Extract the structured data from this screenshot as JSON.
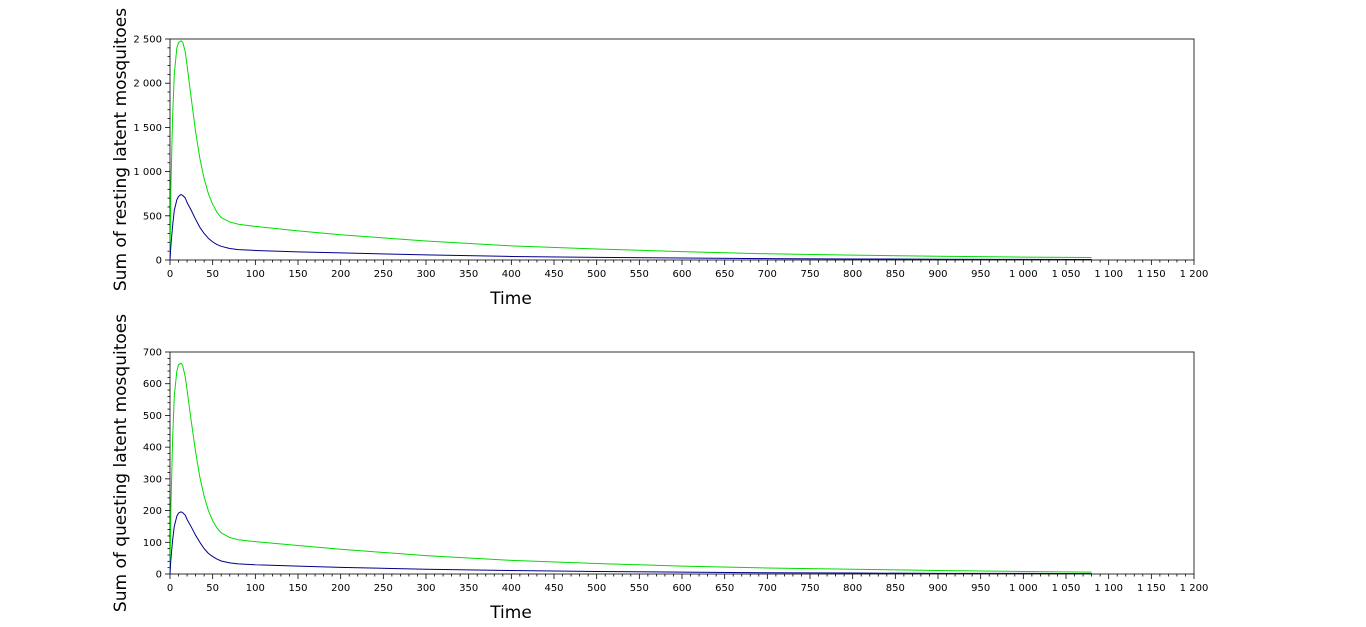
{
  "colors": {
    "series_green": "#00dd00",
    "series_blue": "#00008b",
    "axes": "#000000",
    "background": "#ffffff"
  },
  "chart_data": [
    {
      "type": "line",
      "title": "",
      "xlabel": "Time",
      "ylabel": "Sum of resting latent mosquitoes",
      "xlim": [
        0,
        1200
      ],
      "ylim": [
        0,
        2500
      ],
      "grid": false,
      "x_ticks": [
        0,
        50,
        100,
        150,
        200,
        250,
        300,
        350,
        400,
        450,
        500,
        550,
        600,
        650,
        700,
        750,
        800,
        850,
        900,
        950,
        1000,
        1050,
        1100,
        1150,
        1200
      ],
      "x_tick_labels": [
        "0",
        "50",
        "100",
        "150",
        "200",
        "250",
        "300",
        "350",
        "400",
        "450",
        "500",
        "550",
        "600",
        "650",
        "700",
        "750",
        "800",
        "850",
        "900",
        "950",
        "1 000",
        "1 050",
        "1 100",
        "1 150",
        "1 200"
      ],
      "y_ticks": [
        0,
        500,
        1000,
        1500,
        2000,
        2500
      ],
      "y_tick_labels": [
        "0",
        "500",
        "1 000",
        "1 500",
        "2 000",
        "2 500"
      ],
      "series": [
        {
          "color": "#00dd00",
          "x": [
            0,
            1,
            3,
            5,
            8,
            10,
            13,
            15,
            18,
            20,
            25,
            30,
            35,
            40,
            45,
            50,
            55,
            60,
            70,
            80,
            100,
            150,
            200,
            300,
            400,
            500,
            600,
            700,
            800,
            900,
            1000,
            1080
          ],
          "y": [
            0,
            800,
            1600,
            2100,
            2400,
            2460,
            2480,
            2460,
            2350,
            2200,
            1820,
            1450,
            1150,
            920,
            750,
            630,
            540,
            480,
            430,
            405,
            380,
            330,
            285,
            215,
            160,
            125,
            95,
            70,
            55,
            42,
            33,
            28
          ]
        },
        {
          "color": "#00008b",
          "x": [
            0,
            1,
            3,
            5,
            8,
            10,
            13,
            15,
            18,
            20,
            25,
            30,
            35,
            40,
            45,
            50,
            55,
            60,
            70,
            80,
            100,
            150,
            200,
            300,
            400,
            500,
            600,
            700,
            800,
            900,
            1000,
            1080
          ],
          "y": [
            0,
            160,
            380,
            560,
            680,
            720,
            740,
            730,
            700,
            650,
            560,
            460,
            370,
            300,
            245,
            205,
            175,
            155,
            130,
            118,
            108,
            92,
            80,
            58,
            40,
            30,
            22,
            16,
            12,
            9,
            7,
            6
          ]
        }
      ]
    },
    {
      "type": "line",
      "title": "",
      "xlabel": "Time",
      "ylabel": "Sum of questing latent mosquitoes",
      "xlim": [
        0,
        1200
      ],
      "ylim": [
        0,
        700
      ],
      "grid": false,
      "x_ticks": [
        0,
        50,
        100,
        150,
        200,
        250,
        300,
        350,
        400,
        450,
        500,
        550,
        600,
        650,
        700,
        750,
        800,
        850,
        900,
        950,
        1000,
        1050,
        1100,
        1150,
        1200
      ],
      "x_tick_labels": [
        "0",
        "50",
        "100",
        "150",
        "200",
        "250",
        "300",
        "350",
        "400",
        "450",
        "500",
        "550",
        "600",
        "650",
        "700",
        "750",
        "800",
        "850",
        "900",
        "950",
        "1 000",
        "1 050",
        "1 100",
        "1 150",
        "1 200"
      ],
      "y_ticks": [
        0,
        100,
        200,
        300,
        400,
        500,
        600,
        700
      ],
      "y_tick_labels": [
        "0",
        "100",
        "200",
        "300",
        "400",
        "500",
        "600",
        "700"
      ],
      "series": [
        {
          "color": "#00dd00",
          "x": [
            0,
            1,
            3,
            5,
            8,
            10,
            13,
            15,
            18,
            20,
            25,
            30,
            35,
            40,
            45,
            50,
            55,
            60,
            70,
            80,
            100,
            150,
            200,
            300,
            400,
            500,
            600,
            700,
            800,
            900,
            1000,
            1080
          ],
          "y": [
            0,
            200,
            420,
            560,
            640,
            660,
            665,
            655,
            620,
            580,
            480,
            385,
            305,
            245,
            200,
            168,
            145,
            130,
            115,
            108,
            102,
            90,
            78,
            58,
            43,
            33,
            25,
            19,
            15,
            11,
            8,
            6
          ]
        },
        {
          "color": "#00008b",
          "x": [
            0,
            1,
            3,
            5,
            8,
            10,
            13,
            15,
            18,
            20,
            25,
            30,
            35,
            40,
            45,
            50,
            55,
            60,
            70,
            80,
            100,
            150,
            200,
            300,
            400,
            500,
            600,
            700,
            800,
            900,
            1000,
            1080
          ],
          "y": [
            0,
            45,
            105,
            150,
            182,
            192,
            196,
            193,
            185,
            172,
            148,
            122,
            100,
            80,
            65,
            55,
            47,
            41,
            35,
            32,
            29,
            25,
            21,
            15,
            11,
            8,
            6,
            4,
            3,
            2,
            2,
            1
          ]
        }
      ]
    }
  ]
}
